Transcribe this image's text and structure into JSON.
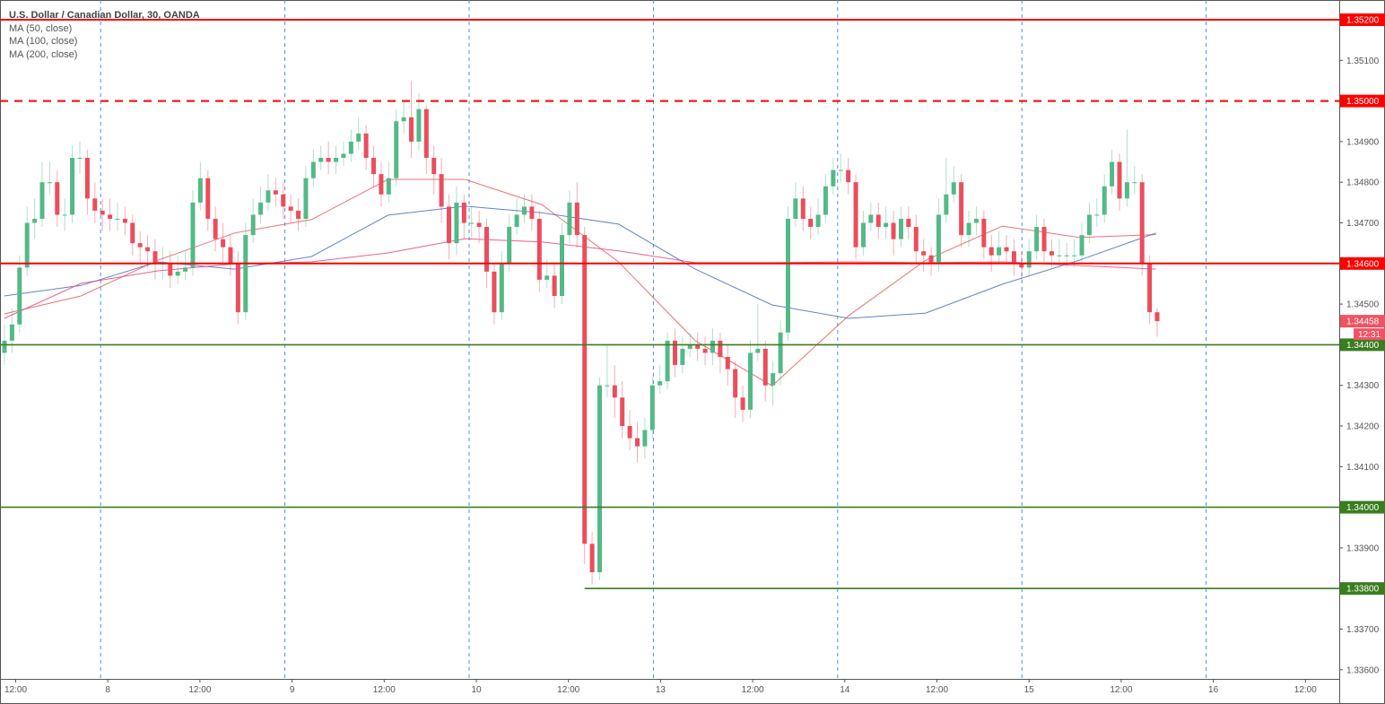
{
  "legend": {
    "title": "U.S. Dollar / Canadian Dollar, 30, OANDA",
    "indicators": [
      "MA (50, close)",
      "MA (100, close)",
      "MA (200, close)"
    ]
  },
  "colors": {
    "up": "#53b987",
    "down": "#eb4d5c",
    "resistance": "#ff0000",
    "support": "#3a7d1f",
    "ma50": "#e35d5d",
    "ma100": "#4a6cc2",
    "ma200": "#e8457a",
    "session": "#4a90e2"
  },
  "chart_data": {
    "type": "candlestick",
    "title": "U.S. Dollar / Canadian Dollar, 30, OANDA",
    "ylim": [
      1.3355,
      1.3525
    ],
    "grid": false,
    "y_ticks": [
      "1.35200",
      "1.35100",
      "1.35000",
      "1.34900",
      "1.34800",
      "1.34700",
      "1.34600",
      "1.34500",
      "1.34400",
      "1.34300",
      "1.34200",
      "1.34100",
      "1.34000",
      "1.33900",
      "1.33800",
      "1.33700",
      "1.33600"
    ],
    "x_ticks": [
      "12:00",
      "8",
      "12:00",
      "9",
      "12:00",
      "10",
      "12:00",
      "13",
      "12:00",
      "14",
      "12:00",
      "15",
      "12:00",
      "16",
      "12:00"
    ],
    "candles_ohlc": [
      [
        1.3438,
        1.3445,
        1.3435,
        1.3441
      ],
      [
        1.3441,
        1.3449,
        1.3438,
        1.3445
      ],
      [
        1.3445,
        1.3462,
        1.3443,
        1.3459
      ],
      [
        1.3459,
        1.3474,
        1.3457,
        1.347
      ],
      [
        1.347,
        1.3476,
        1.3466,
        1.3471
      ],
      [
        1.3471,
        1.3485,
        1.3469,
        1.348
      ],
      [
        1.348,
        1.3485,
        1.3477,
        1.348
      ],
      [
        1.348,
        1.3483,
        1.3469,
        1.3472
      ],
      [
        1.3472,
        1.3476,
        1.3468,
        1.3472
      ],
      [
        1.3472,
        1.3489,
        1.347,
        1.3486
      ],
      [
        1.3486,
        1.349,
        1.3482,
        1.3486
      ],
      [
        1.3486,
        1.3488,
        1.3472,
        1.3476
      ],
      [
        1.3476,
        1.348,
        1.347,
        1.3473
      ],
      [
        1.3473,
        1.3476,
        1.3468,
        1.3472
      ],
      [
        1.3472,
        1.3476,
        1.3468,
        1.3471
      ],
      [
        1.3471,
        1.3475,
        1.3468,
        1.3471
      ],
      [
        1.3471,
        1.3474,
        1.3467,
        1.347
      ],
      [
        1.347,
        1.3472,
        1.3462,
        1.3465
      ],
      [
        1.3465,
        1.3468,
        1.346,
        1.3464
      ],
      [
        1.3464,
        1.3467,
        1.3459,
        1.3463
      ],
      [
        1.3463,
        1.3466,
        1.3456,
        1.346
      ],
      [
        1.346,
        1.3464,
        1.3456,
        1.346
      ],
      [
        1.346,
        1.3463,
        1.3454,
        1.3457
      ],
      [
        1.3457,
        1.3462,
        1.3455,
        1.3458
      ],
      [
        1.3458,
        1.3463,
        1.3456,
        1.3459
      ],
      [
        1.3459,
        1.3478,
        1.3457,
        1.3475
      ],
      [
        1.3475,
        1.3485,
        1.3473,
        1.3481
      ],
      [
        1.3481,
        1.3483,
        1.3468,
        1.3471
      ],
      [
        1.3471,
        1.3474,
        1.3463,
        1.3466
      ],
      [
        1.3466,
        1.347,
        1.346,
        1.3464
      ],
      [
        1.3464,
        1.3467,
        1.3457,
        1.346
      ],
      [
        1.346,
        1.3463,
        1.3445,
        1.3448
      ],
      [
        1.3448,
        1.347,
        1.3446,
        1.3467
      ],
      [
        1.3467,
        1.3476,
        1.3465,
        1.3472
      ],
      [
        1.3472,
        1.3479,
        1.347,
        1.3475
      ],
      [
        1.3475,
        1.3482,
        1.3473,
        1.3478
      ],
      [
        1.3478,
        1.3481,
        1.3474,
        1.3477
      ],
      [
        1.3477,
        1.348,
        1.3471,
        1.3474
      ],
      [
        1.3474,
        1.3477,
        1.347,
        1.3473
      ],
      [
        1.3473,
        1.3476,
        1.3468,
        1.3471
      ],
      [
        1.3471,
        1.3484,
        1.3469,
        1.3481
      ],
      [
        1.3481,
        1.3488,
        1.3479,
        1.3485
      ],
      [
        1.3485,
        1.3489,
        1.3483,
        1.3486
      ],
      [
        1.3486,
        1.349,
        1.3482,
        1.3485
      ],
      [
        1.3485,
        1.3489,
        1.3482,
        1.3486
      ],
      [
        1.3486,
        1.349,
        1.3484,
        1.3487
      ],
      [
        1.3487,
        1.3493,
        1.3485,
        1.349
      ],
      [
        1.349,
        1.3496,
        1.3488,
        1.3492
      ],
      [
        1.3492,
        1.3494,
        1.3483,
        1.3486
      ],
      [
        1.3486,
        1.3489,
        1.3479,
        1.3482
      ],
      [
        1.3482,
        1.3485,
        1.3474,
        1.3477
      ],
      [
        1.3477,
        1.3485,
        1.3475,
        1.3481
      ],
      [
        1.3481,
        1.3498,
        1.3479,
        1.3495
      ],
      [
        1.3495,
        1.35,
        1.3492,
        1.3496
      ],
      [
        1.3496,
        1.3505,
        1.3486,
        1.349
      ],
      [
        1.349,
        1.3502,
        1.3488,
        1.3498
      ],
      [
        1.3498,
        1.3499,
        1.3482,
        1.3486
      ],
      [
        1.3486,
        1.3489,
        1.3477,
        1.3482
      ],
      [
        1.3482,
        1.3486,
        1.347,
        1.3474
      ],
      [
        1.3474,
        1.3477,
        1.3461,
        1.3465
      ],
      [
        1.3465,
        1.3479,
        1.3462,
        1.3475
      ],
      [
        1.3475,
        1.3477,
        1.3466,
        1.347
      ],
      [
        1.347,
        1.3474,
        1.3466,
        1.347
      ],
      [
        1.347,
        1.3473,
        1.3465,
        1.3469
      ],
      [
        1.3469,
        1.3471,
        1.3454,
        1.3458
      ],
      [
        1.3458,
        1.346,
        1.3445,
        1.3448
      ],
      [
        1.3448,
        1.3463,
        1.3446,
        1.346
      ],
      [
        1.346,
        1.3472,
        1.3458,
        1.3469
      ],
      [
        1.3469,
        1.3476,
        1.3467,
        1.3472
      ],
      [
        1.3472,
        1.3477,
        1.347,
        1.3474
      ],
      [
        1.3474,
        1.3477,
        1.3468,
        1.3471
      ],
      [
        1.3471,
        1.3473,
        1.3453,
        1.3456
      ],
      [
        1.3456,
        1.3461,
        1.3454,
        1.3457
      ],
      [
        1.3457,
        1.346,
        1.3449,
        1.3452
      ],
      [
        1.3452,
        1.347,
        1.345,
        1.3467
      ],
      [
        1.3467,
        1.3478,
        1.3465,
        1.3475
      ],
      [
        1.3475,
        1.348,
        1.3464,
        1.3467
      ],
      [
        1.3467,
        1.3469,
        1.3386,
        1.3391
      ],
      [
        1.3391,
        1.3394,
        1.3381,
        1.3384
      ],
      [
        1.3384,
        1.3432,
        1.3382,
        1.343
      ],
      [
        1.343,
        1.344,
        1.3427,
        1.343
      ],
      [
        1.343,
        1.3435,
        1.3422,
        1.3427
      ],
      [
        1.3427,
        1.3431,
        1.3417,
        1.342
      ],
      [
        1.342,
        1.3424,
        1.3414,
        1.3417
      ],
      [
        1.3417,
        1.3421,
        1.3411,
        1.3415
      ],
      [
        1.3415,
        1.3422,
        1.3412,
        1.3419
      ],
      [
        1.3419,
        1.3432,
        1.3417,
        1.343
      ],
      [
        1.343,
        1.3435,
        1.3428,
        1.3431
      ],
      [
        1.3431,
        1.3443,
        1.3429,
        1.3441
      ],
      [
        1.3441,
        1.3444,
        1.3432,
        1.3435
      ],
      [
        1.3435,
        1.3442,
        1.3433,
        1.3439
      ],
      [
        1.3439,
        1.3443,
        1.3437,
        1.344
      ],
      [
        1.344,
        1.3443,
        1.3436,
        1.3439
      ],
      [
        1.3439,
        1.3442,
        1.3435,
        1.3438
      ],
      [
        1.3438,
        1.3444,
        1.3435,
        1.3441
      ],
      [
        1.3441,
        1.3443,
        1.3433,
        1.3437
      ],
      [
        1.3437,
        1.344,
        1.343,
        1.3434
      ],
      [
        1.3434,
        1.3436,
        1.3422,
        1.3427
      ],
      [
        1.3427,
        1.343,
        1.3421,
        1.3424
      ],
      [
        1.3424,
        1.3441,
        1.3422,
        1.3438
      ],
      [
        1.3438,
        1.345,
        1.3436,
        1.3439
      ],
      [
        1.3439,
        1.3441,
        1.3426,
        1.343
      ],
      [
        1.343,
        1.3436,
        1.3425,
        1.3433
      ],
      [
        1.3433,
        1.3446,
        1.343,
        1.3443
      ],
      [
        1.3443,
        1.3474,
        1.3441,
        1.3471
      ],
      [
        1.3471,
        1.348,
        1.3469,
        1.3476
      ],
      [
        1.3476,
        1.3479,
        1.3468,
        1.3471
      ],
      [
        1.3471,
        1.3474,
        1.3466,
        1.3469
      ],
      [
        1.3469,
        1.3476,
        1.3467,
        1.3472
      ],
      [
        1.3472,
        1.3482,
        1.347,
        1.3479
      ],
      [
        1.3479,
        1.3486,
        1.3477,
        1.3483
      ],
      [
        1.3483,
        1.3487,
        1.348,
        1.3483
      ],
      [
        1.3483,
        1.3486,
        1.3477,
        1.348
      ],
      [
        1.348,
        1.3482,
        1.3461,
        1.3464
      ],
      [
        1.3464,
        1.3473,
        1.3462,
        1.347
      ],
      [
        1.347,
        1.3475,
        1.3468,
        1.3472
      ],
      [
        1.3472,
        1.3475,
        1.3466,
        1.3469
      ],
      [
        1.3469,
        1.3474,
        1.3466,
        1.347
      ],
      [
        1.347,
        1.3473,
        1.3462,
        1.3466
      ],
      [
        1.3466,
        1.3474,
        1.3464,
        1.3471
      ],
      [
        1.3471,
        1.3474,
        1.3466,
        1.3469
      ],
      [
        1.3469,
        1.3472,
        1.346,
        1.3463
      ],
      [
        1.3463,
        1.3466,
        1.3458,
        1.3462
      ],
      [
        1.3462,
        1.3464,
        1.3457,
        1.346
      ],
      [
        1.346,
        1.3476,
        1.3458,
        1.3472
      ],
      [
        1.3472,
        1.3486,
        1.347,
        1.3477
      ],
      [
        1.3477,
        1.3484,
        1.3475,
        1.348
      ],
      [
        1.348,
        1.3482,
        1.3464,
        1.3467
      ],
      [
        1.3467,
        1.3473,
        1.3464,
        1.347
      ],
      [
        1.347,
        1.3474,
        1.3467,
        1.3471
      ],
      [
        1.3471,
        1.3473,
        1.3461,
        1.3464
      ],
      [
        1.3464,
        1.3467,
        1.3458,
        1.3462
      ],
      [
        1.3462,
        1.3468,
        1.346,
        1.3464
      ],
      [
        1.3464,
        1.3467,
        1.346,
        1.3463
      ],
      [
        1.3463,
        1.3466,
        1.3457,
        1.346
      ],
      [
        1.346,
        1.3463,
        1.3456,
        1.3459
      ],
      [
        1.3459,
        1.3466,
        1.3457,
        1.3463
      ],
      [
        1.3463,
        1.3472,
        1.3461,
        1.3469
      ],
      [
        1.3469,
        1.3471,
        1.346,
        1.3463
      ],
      [
        1.3463,
        1.3466,
        1.3459,
        1.3462
      ],
      [
        1.3462,
        1.3466,
        1.3459,
        1.3462
      ],
      [
        1.3462,
        1.3465,
        1.3459,
        1.3462
      ],
      [
        1.3462,
        1.3466,
        1.3459,
        1.3462
      ],
      [
        1.3462,
        1.347,
        1.346,
        1.3467
      ],
      [
        1.3467,
        1.3475,
        1.3465,
        1.3472
      ],
      [
        1.3472,
        1.3476,
        1.3469,
        1.3472
      ],
      [
        1.3472,
        1.3482,
        1.347,
        1.3479
      ],
      [
        1.3479,
        1.3488,
        1.3477,
        1.3485
      ],
      [
        1.3485,
        1.3487,
        1.3473,
        1.3476
      ],
      [
        1.3476,
        1.3493,
        1.3474,
        1.348
      ],
      [
        1.348,
        1.3484,
        1.3477,
        1.348
      ],
      [
        1.348,
        1.3482,
        1.3457,
        1.346
      ],
      [
        1.346,
        1.3462,
        1.3445,
        1.3448
      ],
      [
        1.3448,
        1.3449,
        1.3442,
        1.34458
      ]
    ],
    "moving_averages": [
      {
        "name": "MA (50, close)",
        "color": "#e35d5d",
        "values": [
          1.34476,
          1.3452,
          1.34608,
          1.34675,
          1.34708,
          1.34807,
          1.34807,
          1.34745,
          1.34604,
          1.3441,
          1.34299,
          1.34472,
          1.34608,
          1.34692,
          1.34664,
          1.34671
        ]
      },
      {
        "name": "MA (100, close)",
        "color": "#4a6cc2",
        "values": [
          1.3452,
          1.34546,
          1.34604,
          1.34586,
          1.34617,
          1.34719,
          1.34741,
          1.34725,
          1.34697,
          1.34586,
          1.34498,
          1.34465,
          1.34478,
          1.34549,
          1.34608,
          1.34675
        ]
      },
      {
        "name": "MA (200, close)",
        "color": "#e8457a",
        "values": [
          1.34465,
          1.34551,
          1.34582,
          1.34599,
          1.34604,
          1.34626,
          1.34661,
          1.34653,
          1.34631,
          1.34602,
          1.34602,
          1.34604,
          1.34602,
          1.34604,
          1.34595,
          1.34586
        ]
      }
    ],
    "levels": [
      {
        "price": 1.352,
        "label": "1.35200",
        "kind": "resistance",
        "style": "solid"
      },
      {
        "price": 1.35,
        "label": "1.35000",
        "kind": "resistance",
        "style": "dashed"
      },
      {
        "price": 1.346,
        "label": "1.34600",
        "kind": "resistance",
        "style": "solid"
      },
      {
        "price": 1.344,
        "label": "1.34400",
        "kind": "support",
        "style": "solid"
      },
      {
        "price": 1.34,
        "label": "1.34000",
        "kind": "support",
        "style": "solid"
      },
      {
        "price": 1.338,
        "label": "1.33800",
        "kind": "support",
        "style": "solid",
        "from_candle": 77
      }
    ],
    "last_price": {
      "value": 1.34458,
      "label": "1.34458",
      "countdown": "12:31"
    }
  }
}
